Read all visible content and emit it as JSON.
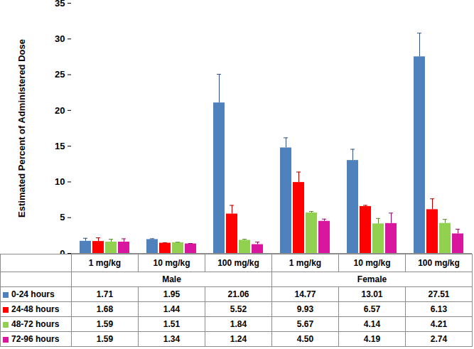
{
  "chart_data": {
    "type": "bar",
    "y_label": "Estimated Percent of Administered Dose",
    "categories": [
      "1 mg/kg",
      "10 mg/kg",
      "100 mg/kg",
      "1 mg/kg",
      "10 mg/kg",
      "100 mg/kg"
    ],
    "groups": [
      {
        "name": "Male",
        "categories": [
          "1 mg/kg",
          "10 mg/kg",
          "100 mg/kg"
        ]
      },
      {
        "name": "Female",
        "categories": [
          "1 mg/kg",
          "10 mg/kg",
          "100 mg/kg"
        ]
      }
    ],
    "series": [
      {
        "name": "0-24 hours",
        "color": "#4f81bd",
        "values": [
          1.71,
          1.95,
          21.06,
          14.77,
          13.01,
          27.51
        ],
        "value_labels": [
          "1.71",
          "1.95",
          "21.06",
          "14.77",
          "13.01",
          "27.51"
        ],
        "errors": [
          0.4,
          0.1,
          4.0,
          1.4,
          1.55,
          3.3
        ]
      },
      {
        "name": "24-48 hours",
        "color": "#ff0000",
        "values": [
          1.68,
          1.44,
          5.52,
          9.93,
          6.57,
          6.13
        ],
        "value_labels": [
          "1.68",
          "1.44",
          "5.52",
          "9.93",
          "6.57",
          "6.13"
        ],
        "errors": [
          0.5,
          0.05,
          1.2,
          1.45,
          0.15,
          1.5
        ]
      },
      {
        "name": "48-72 hours",
        "color": "#92d050",
        "values": [
          1.59,
          1.51,
          1.84,
          5.67,
          4.14,
          4.21
        ],
        "value_labels": [
          "1.59",
          "1.51",
          "1.84",
          "5.67",
          "4.14",
          "4.21"
        ],
        "errors": [
          0.4,
          0.05,
          0.15,
          0.2,
          0.75,
          0.55
        ]
      },
      {
        "name": "72-96 hours",
        "color": "#d9169e",
        "values": [
          1.59,
          1.34,
          1.24,
          4.5,
          4.19,
          2.74
        ],
        "value_labels": [
          "1.59",
          "1.34",
          "1.24",
          "4.50",
          "4.19",
          "2.74"
        ],
        "errors": [
          0.45,
          0.05,
          0.35,
          0.3,
          1.45,
          0.65
        ]
      }
    ],
    "ylim": [
      0,
      35
    ],
    "yticks": [
      0,
      5,
      10,
      15,
      20,
      25,
      30,
      35
    ]
  }
}
